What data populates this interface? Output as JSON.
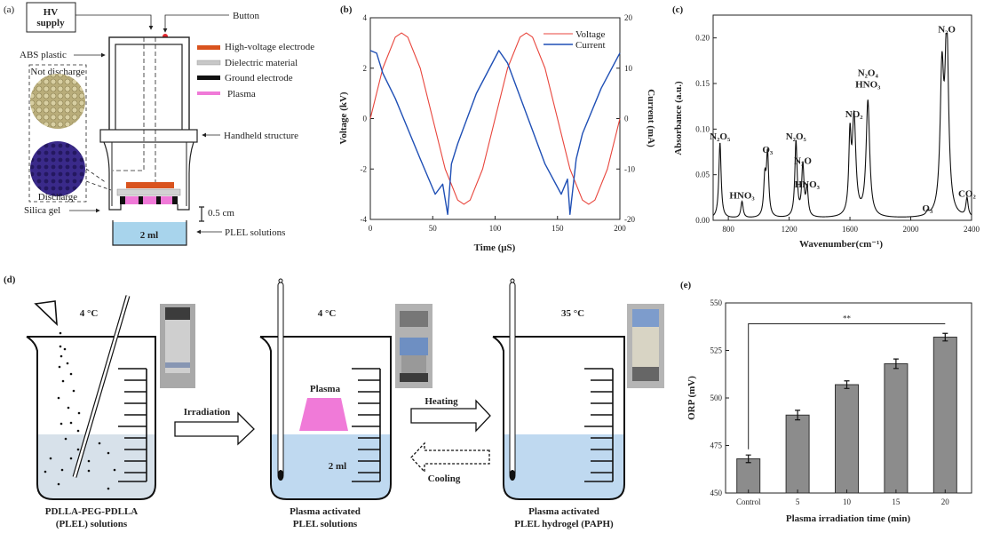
{
  "panel_a": {
    "label": "(a)",
    "hv_supply": [
      "HV",
      "supply"
    ],
    "button": "Button",
    "abs_plastic": "ABS plastic",
    "not_discharge": "Not discharge",
    "discharge": "Discharge",
    "silica_gel": "Silica gel",
    "handheld": "Handheld structure",
    "gap": "0.5 cm",
    "volume": "2 ml",
    "solutions": "PLEL solutions",
    "legend": [
      {
        "label": "High-voltage electrode",
        "color": "#d9531e"
      },
      {
        "label": "Dielectric material",
        "color": "#c8c8c8"
      },
      {
        "label": "Ground electrode",
        "color": "#111111"
      },
      {
        "label": "Plasma",
        "color": "#f07ad8"
      }
    ]
  },
  "panel_d": {
    "label": "(d)",
    "temp1": "4 °C",
    "temp2": "4 °C",
    "temp3": "35 °C",
    "plasma": "Plasma",
    "volume": "2 ml",
    "irradiation": "Irradiation",
    "heating": "Heating",
    "cooling": "Cooling",
    "caption1": [
      "PDLLA-PEG-PDLLA",
      "(PLEL) solutions"
    ],
    "caption2": [
      "Plasma activated",
      "PLEL solutions"
    ],
    "caption3": [
      "Plasma activated",
      "PLEL hydrogel (PAPH)"
    ]
  },
  "chart_data": [
    {
      "panel": "(b)",
      "type": "line",
      "xlabel": "Time (μS)",
      "ylabel": "Voltage (kV)",
      "y2label": "Current (mA)",
      "xlim": [
        0,
        200
      ],
      "ylim": [
        -4,
        4
      ],
      "y2lim": [
        -20,
        20
      ],
      "xticks": [
        "0",
        "50",
        "100",
        "150",
        "200"
      ],
      "yticks": [
        "4",
        "2",
        "0",
        "-2",
        "-4"
      ],
      "y2ticks": [
        "20",
        "10",
        "0",
        "-10",
        "-20"
      ],
      "legend_position": "top-right",
      "series": [
        {
          "name": "Voltage",
          "axis": "left",
          "color": "#e8453c",
          "x": [
            0,
            10,
            20,
            25,
            30,
            40,
            50,
            60,
            70,
            75,
            80,
            90,
            100,
            110,
            120,
            125,
            130,
            140,
            150,
            160,
            170,
            175,
            180,
            190,
            200
          ],
          "y": [
            0,
            2.0,
            3.23,
            3.4,
            3.23,
            2.0,
            0,
            -2.0,
            -3.23,
            -3.4,
            -3.23,
            -2.0,
            0,
            2.0,
            3.23,
            3.4,
            3.23,
            2.0,
            0,
            -2.0,
            -3.23,
            -3.4,
            -3.23,
            -2.0,
            0
          ]
        },
        {
          "name": "Current",
          "axis": "right",
          "color": "#1f4fb5",
          "x": [
            0,
            5,
            10,
            20,
            40,
            52,
            58,
            62,
            65,
            70,
            85,
            103,
            110,
            125,
            140,
            153,
            158,
            160,
            165,
            170,
            185,
            200
          ],
          "y": [
            13.5,
            13,
            9,
            4,
            -8,
            -15,
            -13,
            -19,
            -9,
            -5,
            5,
            13.5,
            11,
            1,
            -9,
            -15,
            -12,
            -19,
            -8,
            -3,
            6,
            13
          ]
        }
      ]
    },
    {
      "panel": "(c)",
      "type": "line",
      "xlabel": "Wavenumber(cm⁻¹)",
      "ylabel": "Absorbance (a.u.)",
      "xlim": [
        700,
        2400
      ],
      "ylim": [
        0,
        0.225
      ],
      "xticks": [
        "800",
        "1200",
        "1600",
        "2000",
        "2400"
      ],
      "yticks": [
        "0.00",
        "0.05",
        "0.10",
        "0.15",
        "0.20"
      ],
      "peaks": [
        {
          "wavenumber": 745,
          "absorbance": 0.083,
          "label": "N₂O₅"
        },
        {
          "wavenumber": 890,
          "absorbance": 0.018,
          "label": "HNO₃"
        },
        {
          "wavenumber": 1040,
          "absorbance": 0.04,
          "label": ""
        },
        {
          "wavenumber": 1058,
          "absorbance": 0.068,
          "label": "O₃"
        },
        {
          "wavenumber": 1245,
          "absorbance": 0.083,
          "label": "N₂O₅"
        },
        {
          "wavenumber": 1290,
          "absorbance": 0.056,
          "label": "N₂O"
        },
        {
          "wavenumber": 1318,
          "absorbance": 0.03,
          "label": "HNO₃"
        },
        {
          "wavenumber": 1600,
          "absorbance": 0.08,
          "label": ""
        },
        {
          "wavenumber": 1627,
          "absorbance": 0.107,
          "label": "NO₂"
        },
        {
          "wavenumber": 1718,
          "absorbance": 0.127,
          "label": "N₂O₄ HNO₃"
        },
        {
          "wavenumber": 2110,
          "absorbance": 0.004,
          "label": "O₃"
        },
        {
          "wavenumber": 2205,
          "absorbance": 0.15,
          "label": ""
        },
        {
          "wavenumber": 2237,
          "absorbance": 0.2,
          "label": "N₂O"
        },
        {
          "wavenumber": 2370,
          "absorbance": 0.02,
          "label": "CO₂"
        }
      ]
    },
    {
      "panel": "(e)",
      "type": "bar",
      "xlabel": "Plasma irradiation time (min)",
      "ylabel": "ORP (mV)",
      "ylim": [
        450,
        550
      ],
      "yticks": [
        "450",
        "475",
        "500",
        "525",
        "550"
      ],
      "categories": [
        "Control",
        "5",
        "10",
        "15",
        "20"
      ],
      "values": [
        468,
        491,
        507,
        518,
        532
      ],
      "errors": [
        2,
        2.5,
        2,
        2.5,
        2
      ],
      "bar_color": "#8c8c8c",
      "significance": {
        "from": "Control",
        "to": "20",
        "label": "**"
      }
    }
  ]
}
